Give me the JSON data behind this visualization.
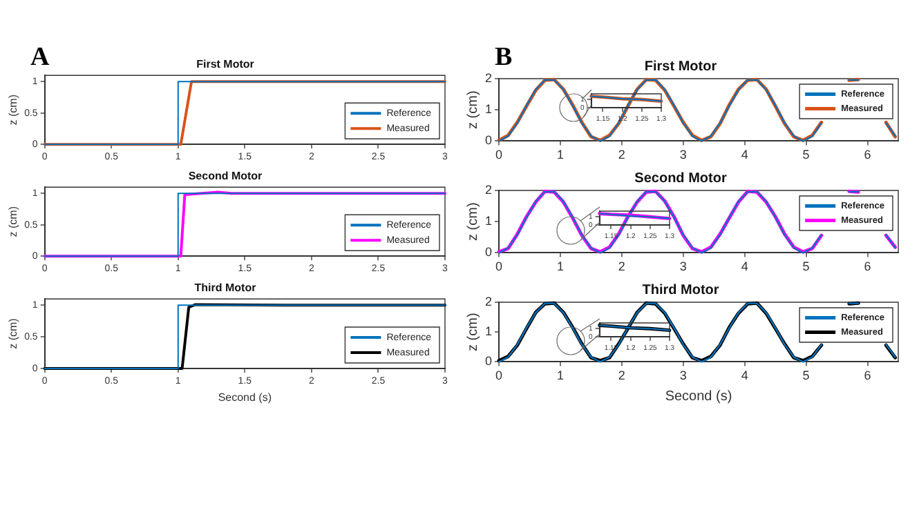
{
  "chart_data": [
    {
      "type": "line",
      "title": "First Motor",
      "ylabel": "z (cm)",
      "annotations": [
        "A"
      ],
      "xlim": [
        0,
        3
      ],
      "xticks": [
        0,
        0.5,
        1,
        1.5,
        2,
        2.5,
        3
      ],
      "ylim": [
        0,
        1.1
      ],
      "yticks": [
        0,
        0.5,
        1
      ],
      "legend": "bottom right",
      "series": [
        {
          "name": "Reference",
          "color": "#0072bd",
          "x": [
            0,
            1,
            1,
            3
          ],
          "values": [
            0,
            0,
            1,
            1
          ]
        },
        {
          "name": "Measured",
          "color": "#d95319",
          "x": [
            0,
            1.02,
            1.1,
            3
          ],
          "values": [
            0,
            0,
            1,
            1
          ]
        }
      ]
    },
    {
      "type": "line",
      "title": "Second Motor",
      "ylabel": "z (cm)",
      "xlim": [
        0,
        3
      ],
      "xticks": [
        0,
        0.5,
        1,
        1.5,
        2,
        2.5,
        3
      ],
      "ylim": [
        0,
        1.1
      ],
      "yticks": [
        0,
        0.5,
        1
      ],
      "legend": "bottom right",
      "series": [
        {
          "name": "Reference",
          "color": "#0072bd",
          "x": [
            0,
            1,
            1,
            3
          ],
          "values": [
            0,
            0,
            1,
            1
          ]
        },
        {
          "name": "Measured",
          "color": "#ff00ff",
          "x": [
            0,
            1.02,
            1.05,
            1.3,
            1.4,
            2.5,
            3
          ],
          "values": [
            0,
            0,
            0.98,
            1.02,
            1,
            1,
            1
          ]
        }
      ]
    },
    {
      "type": "line",
      "title": "Third Motor",
      "xlabel": "Second (s)",
      "ylabel": "z (cm)",
      "xlim": [
        0,
        3
      ],
      "xticks": [
        0,
        0.5,
        1,
        1.5,
        2,
        2.5,
        3
      ],
      "ylim": [
        0,
        1.1
      ],
      "yticks": [
        0,
        0.5,
        1
      ],
      "legend": "bottom right",
      "series": [
        {
          "name": "Reference",
          "color": "#0072bd",
          "x": [
            0,
            1,
            1,
            3
          ],
          "values": [
            0,
            0,
            1,
            1
          ]
        },
        {
          "name": "Measured",
          "color": "#000000",
          "x": [
            0,
            1.03,
            1.08,
            1.13,
            1.8,
            3
          ],
          "values": [
            0,
            0,
            0.97,
            1.01,
            1,
            1
          ]
        }
      ]
    },
    {
      "type": "line",
      "title": "First Motor",
      "ylabel": "z (cm)",
      "annotations": [
        "B"
      ],
      "xlim": [
        0,
        6.5
      ],
      "xticks": [
        0,
        1,
        2,
        3,
        4,
        5,
        6
      ],
      "ylim": [
        0,
        2
      ],
      "yticks": [
        0,
        1,
        2
      ],
      "legend": "top right",
      "x": [
        0,
        0.15,
        0.3,
        0.45,
        0.6,
        0.75,
        0.9,
        1.05,
        1.2,
        1.35,
        1.5,
        1.65,
        1.8,
        1.95,
        2.1,
        2.25,
        2.4,
        2.55,
        2.7,
        2.85,
        3,
        3.15,
        3.3,
        3.45,
        3.6,
        3.75,
        3.9,
        4.05,
        4.2,
        4.35,
        4.5,
        4.65,
        4.8,
        4.95,
        5.1,
        5.25,
        5.4,
        5.55,
        5.7,
        5.85,
        6,
        6.15,
        6.3,
        6.45
      ],
      "series": [
        {
          "name": "Reference",
          "color": "#0072bd",
          "values": [
            0,
            0.16,
            0.58,
            1.14,
            1.65,
            1.96,
            1.96,
            1.65,
            1.14,
            0.58,
            0.16,
            0,
            0.16,
            0.58,
            1.14,
            1.65,
            1.96,
            1.96,
            1.65,
            1.14,
            0.58,
            0.16,
            0,
            0.16,
            0.58,
            1.14,
            1.65,
            1.96,
            1.96,
            1.65,
            1.14,
            0.58,
            0.16,
            0,
            0.16,
            0.58,
            null,
            null,
            1.96,
            1.96,
            null,
            null,
            0.58,
            0.16
          ]
        },
        {
          "name": "Measured",
          "color": "#d95319",
          "values": [
            0.02,
            0.18,
            0.6,
            1.12,
            1.63,
            1.95,
            1.97,
            1.66,
            1.16,
            0.6,
            0.14,
            0.02,
            0.18,
            0.56,
            1.12,
            1.66,
            1.97,
            1.95,
            1.63,
            1.12,
            0.6,
            0.18,
            0.02,
            0.14,
            0.56,
            1.16,
            1.66,
            1.95,
            1.97,
            1.66,
            1.12,
            0.56,
            0.14,
            0.02,
            0.18,
            0.6,
            null,
            null,
            1.95,
            1.97,
            null,
            null,
            0.6,
            0.14
          ]
        }
      ]
    },
    {
      "type": "line",
      "title": "Second Motor",
      "ylabel": "z (cm)",
      "xlim": [
        0,
        6.5
      ],
      "xticks": [
        0,
        1,
        2,
        3,
        4,
        5,
        6
      ],
      "ylim": [
        0,
        2
      ],
      "yticks": [
        0,
        1,
        2
      ],
      "legend": "top right",
      "x": [
        0,
        0.15,
        0.3,
        0.45,
        0.6,
        0.75,
        0.9,
        1.05,
        1.2,
        1.35,
        1.5,
        1.65,
        1.8,
        1.95,
        2.1,
        2.25,
        2.4,
        2.55,
        2.7,
        2.85,
        3,
        3.15,
        3.3,
        3.45,
        3.6,
        3.75,
        3.9,
        4.05,
        4.2,
        4.35,
        4.5,
        4.65,
        4.8,
        4.95,
        5.1,
        5.25,
        5.4,
        5.55,
        5.7,
        5.85,
        6,
        6.15,
        6.3,
        6.45
      ],
      "series": [
        {
          "name": "Reference",
          "color": "#0072bd",
          "values": [
            0,
            0.16,
            0.58,
            1.14,
            1.65,
            1.96,
            1.96,
            1.65,
            1.14,
            0.58,
            0.16,
            0,
            0.16,
            0.58,
            1.14,
            1.65,
            1.96,
            1.96,
            1.65,
            1.14,
            0.58,
            0.16,
            0,
            0.16,
            0.58,
            1.14,
            1.65,
            1.96,
            1.96,
            1.65,
            1.14,
            0.58,
            0.16,
            0,
            0.16,
            0.58,
            null,
            null,
            1.96,
            1.96,
            null,
            null,
            0.58,
            0.16
          ]
        },
        {
          "name": "Measured",
          "color": "#ff00ff",
          "values": [
            0.03,
            0.14,
            0.6,
            1.16,
            1.63,
            1.97,
            1.95,
            1.63,
            1.12,
            0.56,
            0.14,
            0.03,
            0.18,
            0.6,
            1.16,
            1.63,
            1.95,
            1.97,
            1.66,
            1.16,
            0.56,
            0.14,
            0.03,
            0.18,
            0.6,
            1.12,
            1.63,
            1.97,
            1.95,
            1.63,
            1.16,
            0.6,
            0.18,
            0.03,
            0.14,
            0.56,
            null,
            null,
            1.97,
            1.95,
            null,
            null,
            0.56,
            0.18
          ]
        }
      ]
    },
    {
      "type": "line",
      "title": "Third Motor",
      "xlabel": "Second (s)",
      "ylabel": "z (cm)",
      "xlim": [
        0,
        6.5
      ],
      "xticks": [
        0,
        1,
        2,
        3,
        4,
        5,
        6
      ],
      "ylim": [
        0,
        2
      ],
      "yticks": [
        0,
        1,
        2
      ],
      "legend": "top right",
      "x": [
        0,
        0.15,
        0.3,
        0.45,
        0.6,
        0.75,
        0.9,
        1.05,
        1.2,
        1.35,
        1.5,
        1.65,
        1.8,
        1.95,
        2.1,
        2.25,
        2.4,
        2.55,
        2.7,
        2.85,
        3,
        3.15,
        3.3,
        3.45,
        3.6,
        3.75,
        3.9,
        4.05,
        4.2,
        4.35,
        4.5,
        4.65,
        4.8,
        4.95,
        5.1,
        5.25,
        5.4,
        5.55,
        5.7,
        5.85,
        6,
        6.15,
        6.3,
        6.45
      ],
      "series": [
        {
          "name": "Reference",
          "color": "#0072bd",
          "values": [
            0,
            0.16,
            0.58,
            1.14,
            1.65,
            1.96,
            1.96,
            1.65,
            1.14,
            0.58,
            0.16,
            0,
            0.16,
            0.58,
            1.14,
            1.65,
            1.96,
            1.96,
            1.65,
            1.14,
            0.58,
            0.16,
            0,
            0.16,
            0.58,
            1.14,
            1.65,
            1.96,
            1.96,
            1.65,
            1.14,
            0.58,
            0.16,
            0,
            0.16,
            0.58,
            null,
            null,
            1.96,
            1.96,
            null,
            null,
            0.58,
            0.16
          ]
        },
        {
          "name": "Measured",
          "color": "#000000",
          "values": [
            0.04,
            0.18,
            0.56,
            1.12,
            1.66,
            1.95,
            1.97,
            1.66,
            1.16,
            0.6,
            0.14,
            0.04,
            0.14,
            0.6,
            1.12,
            1.66,
            1.97,
            1.95,
            1.63,
            1.12,
            0.6,
            0.14,
            0.04,
            0.18,
            0.56,
            1.16,
            1.63,
            1.95,
            1.97,
            1.63,
            1.12,
            0.6,
            0.14,
            0.04,
            0.18,
            0.56,
            null,
            null,
            1.95,
            1.97,
            null,
            null,
            0.56,
            0.14
          ]
        }
      ]
    },
    {
      "type": "line",
      "xlim": [
        1.12,
        1.3
      ],
      "xticks": [
        1.15,
        1.2,
        1.25,
        1.3
      ],
      "ylim": [
        0,
        1.7
      ],
      "yticks": [
        0,
        1
      ],
      "series": [
        {
          "color": "#0072bd",
          "x": [
            1.12,
            1.15,
            1.2,
            1.25,
            1.3
          ],
          "values": [
            1.4,
            1.3,
            1.1,
            1.0,
            0.8
          ]
        },
        {
          "color": "#d95319",
          "x": [
            1.12,
            1.15,
            1.2,
            1.25,
            1.3
          ],
          "values": [
            1.4,
            1.3,
            1.1,
            1.0,
            0.8
          ]
        }
      ]
    },
    {
      "type": "line",
      "xlim": [
        1.12,
        1.3
      ],
      "xticks": [
        1.15,
        1.2,
        1.25,
        1.3
      ],
      "ylim": [
        0,
        1.7
      ],
      "yticks": [
        0,
        1
      ],
      "series": [
        {
          "color": "#0072bd",
          "x": [
            1.12,
            1.15,
            1.2,
            1.25,
            1.3
          ],
          "values": [
            1.4,
            1.3,
            1.1,
            1.0,
            0.8
          ]
        },
        {
          "color": "#ff00ff",
          "x": [
            1.12,
            1.15,
            1.2,
            1.25,
            1.3
          ],
          "values": [
            1.4,
            1.3,
            1.2,
            1.0,
            0.8
          ]
        }
      ]
    },
    {
      "type": "line",
      "xlim": [
        1.12,
        1.3
      ],
      "xticks": [
        1.15,
        1.2,
        1.25,
        1.3
      ],
      "ylim": [
        0,
        1.7
      ],
      "yticks": [
        0,
        1
      ],
      "series": [
        {
          "color": "#0072bd",
          "x": [
            1.12,
            1.15,
            1.2,
            1.25,
            1.3
          ],
          "values": [
            1.4,
            1.3,
            1.1,
            1.0,
            0.8
          ]
        },
        {
          "color": "#000000",
          "x": [
            1.12,
            1.15,
            1.2,
            1.25,
            1.3
          ],
          "values": [
            1.4,
            1.3,
            1.1,
            1.0,
            0.8
          ]
        }
      ]
    }
  ]
}
